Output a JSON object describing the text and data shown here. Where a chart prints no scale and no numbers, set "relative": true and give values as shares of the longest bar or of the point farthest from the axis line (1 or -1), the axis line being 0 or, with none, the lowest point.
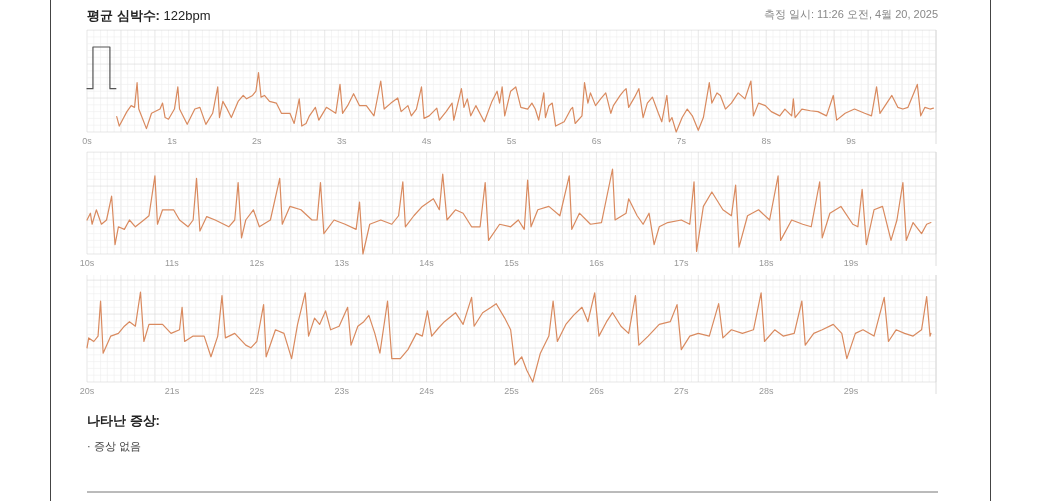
{
  "chart_data": [
    {
      "type": "line",
      "title": "평균 심박수: 122bpm",
      "subtitle": "측정 일시: 11:26 오전, 4월 20, 2025",
      "relative": true,
      "grid": true,
      "tick_labels": "x",
      "xlim": [
        0,
        10
      ],
      "xticks": [
        {
          "value": 0,
          "label": "0s"
        },
        {
          "value": 1,
          "label": "1s"
        },
        {
          "value": 2,
          "label": "2s"
        },
        {
          "value": 3,
          "label": "3s"
        },
        {
          "value": 4,
          "label": "4s"
        },
        {
          "value": 5,
          "label": "5s"
        },
        {
          "value": 6,
          "label": "6s"
        },
        {
          "value": 7,
          "label": "7s"
        },
        {
          "value": 8,
          "label": "8s"
        },
        {
          "value": 9,
          "label": "9s"
        }
      ],
      "series": [
        {
          "color": "#555555",
          "x": [
            0,
            0.07,
            0.07,
            0.27,
            0.27,
            0.34
          ],
          "values": [
            0.51,
            0.51,
            1.0,
            1.0,
            0.51,
            0.51
          ]
        },
        {
          "color": "#d98a5f",
          "x": [
            0.35,
            0.38,
            0.47,
            0.52,
            0.56,
            0.59,
            0.61,
            0.7,
            0.76,
            0.86,
            0.89,
            0.92,
            0.96,
            1.03,
            1.07,
            1.09,
            1.18,
            1.27,
            1.33,
            1.4,
            1.48,
            1.54,
            1.56,
            1.6,
            1.64,
            1.7,
            1.78,
            1.84,
            1.88,
            1.95,
            1.99,
            2.02,
            2.05,
            2.09,
            2.15,
            2.23,
            2.29,
            2.39,
            2.44,
            2.5,
            2.53,
            2.58,
            2.62,
            2.69,
            2.73,
            2.82,
            2.93,
            2.98,
            3.01,
            3.07,
            3.14,
            3.21,
            3.29,
            3.38,
            3.46,
            3.5,
            3.58,
            3.66,
            3.7,
            3.78,
            3.82,
            3.88,
            3.94,
            3.97,
            4.03,
            4.12,
            4.15,
            4.23,
            4.3,
            4.32,
            4.41,
            4.44,
            4.48,
            4.52,
            4.58,
            4.68,
            4.77,
            4.83,
            4.86,
            4.89,
            4.92,
            4.99,
            5.05,
            5.11,
            5.19,
            5.24,
            5.28,
            5.32,
            5.38,
            5.4,
            5.44,
            5.48,
            5.52,
            5.62,
            5.7,
            5.72,
            5.75,
            5.83,
            5.86,
            5.9,
            5.93,
            5.99,
            6.05,
            6.11,
            6.17,
            6.2,
            6.28,
            6.32,
            6.35,
            6.38,
            6.45,
            6.5,
            6.55,
            6.6,
            6.66,
            6.73,
            6.77,
            6.83,
            6.86,
            6.89,
            6.94,
            7.01,
            7.07,
            7.13,
            7.2,
            7.26,
            7.33,
            7.36,
            7.42,
            7.46,
            7.52,
            7.59,
            7.67,
            7.75,
            7.82,
            7.85,
            7.91,
            7.99,
            8.06,
            8.16,
            8.22,
            8.3,
            8.32,
            8.34,
            8.42,
            8.52,
            8.61,
            8.71,
            8.79,
            8.83,
            8.93,
            9.04,
            9.16,
            9.24,
            9.3,
            9.34,
            9.42,
            9.48,
            9.55,
            9.61,
            9.67,
            9.78,
            9.82,
            9.87,
            9.93,
            9.97
          ],
          "values": [
            0.18,
            0.07,
            0.24,
            0.31,
            0.29,
            0.58,
            0.27,
            0.04,
            0.22,
            0.27,
            0.34,
            0.17,
            0.15,
            0.27,
            0.53,
            0.27,
            0.09,
            0.27,
            0.29,
            0.09,
            0.22,
            0.53,
            0.17,
            0.36,
            0.29,
            0.17,
            0.36,
            0.43,
            0.39,
            0.43,
            0.48,
            0.7,
            0.41,
            0.43,
            0.36,
            0.34,
            0.22,
            0.22,
            0.1,
            0.39,
            0.07,
            0.1,
            0.19,
            0.29,
            0.14,
            0.29,
            0.22,
            0.56,
            0.22,
            0.31,
            0.45,
            0.31,
            0.31,
            0.19,
            0.6,
            0.27,
            0.34,
            0.4,
            0.24,
            0.31,
            0.19,
            0.27,
            0.53,
            0.16,
            0.19,
            0.28,
            0.14,
            0.24,
            0.34,
            0.14,
            0.51,
            0.29,
            0.39,
            0.19,
            0.31,
            0.12,
            0.36,
            0.48,
            0.34,
            0.53,
            0.19,
            0.48,
            0.53,
            0.29,
            0.27,
            0.34,
            0.27,
            0.14,
            0.46,
            0.17,
            0.31,
            0.34,
            0.07,
            0.12,
            0.27,
            0.29,
            0.1,
            0.19,
            0.58,
            0.34,
            0.46,
            0.31,
            0.39,
            0.46,
            0.22,
            0.31,
            0.43,
            0.48,
            0.51,
            0.29,
            0.41,
            0.51,
            0.17,
            0.34,
            0.41,
            0.22,
            0.12,
            0.43,
            0.12,
            0.17,
            0.0,
            0.17,
            0.27,
            0.19,
            0.02,
            0.17,
            0.58,
            0.34,
            0.46,
            0.43,
            0.27,
            0.34,
            0.46,
            0.39,
            0.6,
            0.19,
            0.34,
            0.31,
            0.24,
            0.19,
            0.27,
            0.19,
            0.39,
            0.17,
            0.27,
            0.25,
            0.24,
            0.19,
            0.43,
            0.14,
            0.22,
            0.27,
            0.22,
            0.19,
            0.53,
            0.22,
            0.34,
            0.43,
            0.29,
            0.27,
            0.29,
            0.56,
            0.19,
            0.29,
            0.27,
            0.28
          ]
        }
      ]
    },
    {
      "type": "line",
      "relative": true,
      "grid": true,
      "tick_labels": "x",
      "xlim": [
        10,
        20
      ],
      "xticks": [
        {
          "value": 10,
          "label": "10s"
        },
        {
          "value": 11,
          "label": "11s"
        },
        {
          "value": 12,
          "label": "12s"
        },
        {
          "value": 13,
          "label": "13s"
        },
        {
          "value": 14,
          "label": "14s"
        },
        {
          "value": 15,
          "label": "15s"
        },
        {
          "value": 16,
          "label": "16s"
        },
        {
          "value": 17,
          "label": "17s"
        },
        {
          "value": 18,
          "label": "18s"
        },
        {
          "value": 19,
          "label": "19s"
        }
      ],
      "series": [
        {
          "color": "#d98a5f",
          "x": [
            10.0,
            10.04,
            10.06,
            10.11,
            10.17,
            10.23,
            10.29,
            10.33,
            10.37,
            10.44,
            10.5,
            10.57,
            10.67,
            10.73,
            10.8,
            10.83,
            10.89,
            11.02,
            11.09,
            11.19,
            11.25,
            11.29,
            11.33,
            11.41,
            11.51,
            11.67,
            11.74,
            11.78,
            11.82,
            11.87,
            11.96,
            12.03,
            12.16,
            12.27,
            12.3,
            12.39,
            12.52,
            12.65,
            12.71,
            12.75,
            12.79,
            12.91,
            13.04,
            13.17,
            13.21,
            13.25,
            13.33,
            13.46,
            13.59,
            13.67,
            13.72,
            13.75,
            13.85,
            13.95,
            14.08,
            14.15,
            14.19,
            14.24,
            14.34,
            14.43,
            14.53,
            14.63,
            14.69,
            14.73,
            14.86,
            14.99,
            15.08,
            15.15,
            15.19,
            15.23,
            15.31,
            15.44,
            15.57,
            15.68,
            15.71,
            15.8,
            15.93,
            16.06,
            16.19,
            16.22,
            16.35,
            16.38,
            16.48,
            16.55,
            16.62,
            16.68,
            16.74,
            16.84,
            17.0,
            17.1,
            17.15,
            17.18,
            17.26,
            17.36,
            17.49,
            17.59,
            17.64,
            17.68,
            17.78,
            17.91,
            18.04,
            18.14,
            18.17,
            18.3,
            18.43,
            18.53,
            18.63,
            18.66,
            18.75,
            18.88,
            19.02,
            19.08,
            19.13,
            19.18,
            19.27,
            19.37,
            19.47,
            19.54,
            19.61,
            19.65,
            19.73,
            19.83,
            19.89,
            19.94
          ],
          "values": [
            0.4,
            0.48,
            0.35,
            0.52,
            0.35,
            0.4,
            0.68,
            0.11,
            0.32,
            0.29,
            0.4,
            0.32,
            0.4,
            0.45,
            0.92,
            0.35,
            0.52,
            0.52,
            0.4,
            0.32,
            0.4,
            0.89,
            0.27,
            0.44,
            0.4,
            0.32,
            0.4,
            0.84,
            0.19,
            0.4,
            0.52,
            0.32,
            0.4,
            0.89,
            0.35,
            0.56,
            0.52,
            0.4,
            0.4,
            0.84,
            0.24,
            0.4,
            0.35,
            0.29,
            0.61,
            0.0,
            0.35,
            0.4,
            0.35,
            0.45,
            0.85,
            0.32,
            0.45,
            0.56,
            0.65,
            0.52,
            0.94,
            0.4,
            0.52,
            0.48,
            0.32,
            0.32,
            0.84,
            0.16,
            0.35,
            0.32,
            0.4,
            0.29,
            0.87,
            0.32,
            0.52,
            0.56,
            0.45,
            0.92,
            0.29,
            0.48,
            0.35,
            0.37,
            1.0,
            0.4,
            0.48,
            0.65,
            0.45,
            0.35,
            0.48,
            0.11,
            0.32,
            0.37,
            0.4,
            0.35,
            0.85,
            0.03,
            0.56,
            0.73,
            0.52,
            0.45,
            0.81,
            0.08,
            0.45,
            0.52,
            0.4,
            0.92,
            0.16,
            0.4,
            0.35,
            0.32,
            0.85,
            0.19,
            0.48,
            0.56,
            0.35,
            0.32,
            0.76,
            0.11,
            0.52,
            0.56,
            0.16,
            0.4,
            0.84,
            0.16,
            0.37,
            0.24,
            0.35,
            0.37
          ]
        }
      ]
    },
    {
      "type": "line",
      "relative": true,
      "grid": true,
      "tick_labels": "x",
      "xlim": [
        20,
        30
      ],
      "xticks": [
        {
          "value": 20,
          "label": "20s"
        },
        {
          "value": 21,
          "label": "21s"
        },
        {
          "value": 22,
          "label": "22s"
        },
        {
          "value": 23,
          "label": "23s"
        },
        {
          "value": 24,
          "label": "24s"
        },
        {
          "value": 25,
          "label": "25s"
        },
        {
          "value": 26,
          "label": "26s"
        },
        {
          "value": 27,
          "label": "27s"
        },
        {
          "value": 28,
          "label": "28s"
        },
        {
          "value": 29,
          "label": "29s"
        }
      ],
      "annotations": [
        "나타난 증상:",
        "· 증상 없음"
      ],
      "series": [
        {
          "color": "#d98a5f",
          "x": [
            20.0,
            20.02,
            20.08,
            20.13,
            20.16,
            20.19,
            20.28,
            20.37,
            20.44,
            20.5,
            20.57,
            20.63,
            20.67,
            20.73,
            20.89,
            20.99,
            21.09,
            21.12,
            21.15,
            21.25,
            21.38,
            21.46,
            21.54,
            21.59,
            21.63,
            21.74,
            21.87,
            21.93,
            22.0,
            22.08,
            22.11,
            22.22,
            22.32,
            22.41,
            22.48,
            22.57,
            22.61,
            22.68,
            22.74,
            22.81,
            22.87,
            22.97,
            23.07,
            23.11,
            23.19,
            23.26,
            23.32,
            23.39,
            23.45,
            23.54,
            23.59,
            23.69,
            23.78,
            23.88,
            23.95,
            24.01,
            24.06,
            24.14,
            24.21,
            24.34,
            24.43,
            24.53,
            24.56,
            24.66,
            24.76,
            24.82,
            24.92,
            24.99,
            25.04,
            25.12,
            25.18,
            25.25,
            25.34,
            25.44,
            25.49,
            25.54,
            25.64,
            25.73,
            25.83,
            25.9,
            25.98,
            26.03,
            26.12,
            26.19,
            26.29,
            26.38,
            26.46,
            26.5,
            26.61,
            26.74,
            26.87,
            26.95,
            27.0,
            27.1,
            27.2,
            27.33,
            27.44,
            27.49,
            27.59,
            27.72,
            27.85,
            27.94,
            27.98,
            28.1,
            28.2,
            28.33,
            28.42,
            28.46,
            28.56,
            28.66,
            28.79,
            28.89,
            28.95,
            29.05,
            29.14,
            29.27,
            29.39,
            29.44,
            29.53,
            29.63,
            29.73,
            29.83,
            29.89,
            29.93,
            29.94
          ],
          "values": [
            0.38,
            0.49,
            0.45,
            0.51,
            0.9,
            0.32,
            0.51,
            0.54,
            0.62,
            0.67,
            0.62,
            1.0,
            0.45,
            0.64,
            0.64,
            0.54,
            0.58,
            0.83,
            0.45,
            0.51,
            0.51,
            0.28,
            0.51,
            0.96,
            0.49,
            0.54,
            0.41,
            0.38,
            0.45,
            0.86,
            0.28,
            0.58,
            0.54,
            0.26,
            0.64,
            0.99,
            0.51,
            0.71,
            0.64,
            0.79,
            0.58,
            0.62,
            0.83,
            0.41,
            0.62,
            0.67,
            0.74,
            0.54,
            0.32,
            0.9,
            0.26,
            0.26,
            0.36,
            0.54,
            0.51,
            0.79,
            0.51,
            0.6,
            0.67,
            0.77,
            0.64,
            0.94,
            0.62,
            0.77,
            0.83,
            0.87,
            0.71,
            0.58,
            0.19,
            0.28,
            0.13,
            0.0,
            0.32,
            0.51,
            0.9,
            0.45,
            0.64,
            0.74,
            0.83,
            0.67,
            0.99,
            0.51,
            0.67,
            0.77,
            0.62,
            0.54,
            0.96,
            0.41,
            0.51,
            0.64,
            0.67,
            0.86,
            0.36,
            0.51,
            0.54,
            0.51,
            0.87,
            0.49,
            0.58,
            0.54,
            0.58,
            0.99,
            0.45,
            0.58,
            0.51,
            0.54,
            0.9,
            0.41,
            0.54,
            0.58,
            0.64,
            0.54,
            0.26,
            0.54,
            0.58,
            0.51,
            0.94,
            0.45,
            0.58,
            0.54,
            0.51,
            0.58,
            0.95,
            0.51,
            0.54
          ]
        }
      ]
    }
  ]
}
